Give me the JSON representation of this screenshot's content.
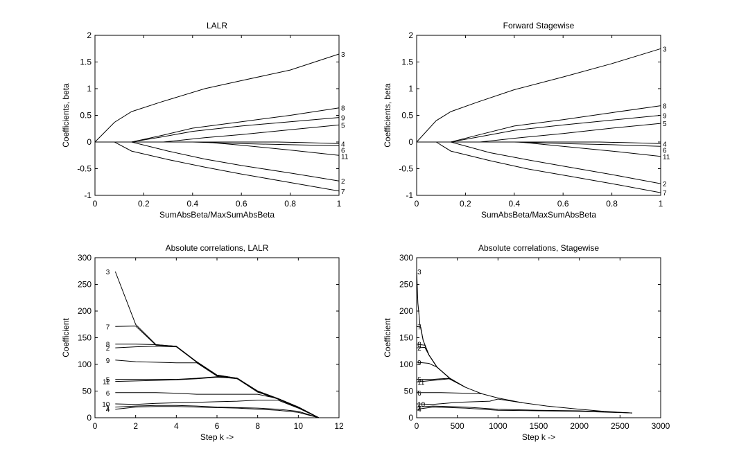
{
  "chart_data": [
    {
      "type": "line",
      "title": "LALR",
      "xlabel": "SumAbsBeta/MaxSumAbsBeta",
      "ylabel": "Coefficients, beta",
      "xlim": [
        0,
        1
      ],
      "ylim": [
        -1,
        2
      ],
      "xticks": [
        0,
        0.2,
        0.4,
        0.6,
        0.8,
        1
      ],
      "yticks": [
        -1,
        -0.5,
        0,
        0.5,
        1,
        1.5,
        2
      ],
      "xtick_labels": [
        "0",
        "0.2",
        "0.4",
        "0.6",
        "0.8",
        "1"
      ],
      "ytick_labels": [
        "-1",
        "-0.5",
        "0",
        "0.5",
        "1",
        "1.5",
        "2"
      ],
      "grid": false,
      "series": [
        {
          "name": "3",
          "x": [
            0,
            0.08,
            0.15,
            0.27,
            0.45,
            0.6,
            0.8,
            1.0
          ],
          "y": [
            0,
            0.37,
            0.57,
            0.75,
            1.0,
            1.15,
            1.35,
            1.65
          ]
        },
        {
          "name": "8",
          "x": [
            0,
            0.15,
            0.28,
            0.4,
            0.6,
            0.8,
            1.0
          ],
          "y": [
            0,
            0,
            0.13,
            0.26,
            0.38,
            0.5,
            0.64
          ]
        },
        {
          "name": "9",
          "x": [
            0,
            0.15,
            0.28,
            0.4,
            0.6,
            0.8,
            1.0
          ],
          "y": [
            0,
            0,
            0.1,
            0.2,
            0.3,
            0.38,
            0.46
          ]
        },
        {
          "name": "5",
          "x": [
            0,
            0.28,
            0.45,
            0.6,
            0.8,
            1.0
          ],
          "y": [
            0,
            0,
            0.08,
            0.14,
            0.23,
            0.32
          ]
        },
        {
          "name": "4",
          "x": [
            0,
            0.75,
            0.85,
            1.0
          ],
          "y": [
            0,
            0,
            -0.01,
            -0.03
          ]
        },
        {
          "name": "6",
          "x": [
            0,
            0.4,
            0.6,
            0.8,
            1.0
          ],
          "y": [
            0,
            0,
            -0.03,
            -0.05,
            -0.07
          ]
        },
        {
          "name": "11",
          "x": [
            0,
            0.45,
            0.6,
            0.8,
            1.0
          ],
          "y": [
            0,
            0,
            -0.06,
            -0.15,
            -0.25
          ]
        },
        {
          "name": "2",
          "x": [
            0,
            0.15,
            0.3,
            0.45,
            0.6,
            0.8,
            1.0
          ],
          "y": [
            0,
            0,
            -0.17,
            -0.32,
            -0.44,
            -0.58,
            -0.73
          ]
        },
        {
          "name": "7",
          "x": [
            0,
            0.08,
            0.15,
            0.3,
            0.45,
            0.6,
            0.8,
            1.0
          ],
          "y": [
            0,
            0,
            -0.17,
            -0.33,
            -0.47,
            -0.6,
            -0.76,
            -0.92
          ]
        }
      ]
    },
    {
      "type": "line",
      "title": "Forward Stagewise",
      "xlabel": "SumAbsBeta/MaxSumAbsBeta",
      "ylabel": "Coefficients, beta",
      "xlim": [
        0,
        1
      ],
      "ylim": [
        -1,
        2
      ],
      "xticks": [
        0,
        0.2,
        0.4,
        0.6,
        0.8,
        1
      ],
      "yticks": [
        -1,
        -0.5,
        0,
        0.5,
        1,
        1.5,
        2
      ],
      "xtick_labels": [
        "0",
        "0.2",
        "0.4",
        "0.6",
        "0.8",
        "1"
      ],
      "ytick_labels": [
        "-1",
        "-0.5",
        "0",
        "0.5",
        "1",
        "1.5",
        "2"
      ],
      "grid": false,
      "series": [
        {
          "name": "3",
          "x": [
            0,
            0.08,
            0.14,
            0.25,
            0.4,
            0.6,
            0.8,
            1.0
          ],
          "y": [
            0,
            0.4,
            0.57,
            0.75,
            0.98,
            1.22,
            1.47,
            1.75
          ]
        },
        {
          "name": "8",
          "x": [
            0,
            0.14,
            0.26,
            0.4,
            0.6,
            0.8,
            1.0
          ],
          "y": [
            0,
            0,
            0.14,
            0.3,
            0.42,
            0.55,
            0.68
          ]
        },
        {
          "name": "9",
          "x": [
            0,
            0.14,
            0.26,
            0.4,
            0.6,
            0.8,
            1.0
          ],
          "y": [
            0,
            0,
            0.1,
            0.22,
            0.32,
            0.41,
            0.5
          ]
        },
        {
          "name": "5",
          "x": [
            0,
            0.26,
            0.4,
            0.6,
            0.8,
            1.0
          ],
          "y": [
            0,
            0,
            0.07,
            0.16,
            0.26,
            0.35
          ]
        },
        {
          "name": "4",
          "x": [
            0,
            0.75,
            0.85,
            1.0
          ],
          "y": [
            0,
            0,
            -0.01,
            -0.03
          ]
        },
        {
          "name": "6",
          "x": [
            0,
            0.4,
            0.6,
            0.8,
            1.0
          ],
          "y": [
            0,
            0,
            -0.03,
            -0.05,
            -0.08
          ]
        },
        {
          "name": "11",
          "x": [
            0,
            0.42,
            0.6,
            0.8,
            1.0
          ],
          "y": [
            0,
            0,
            -0.08,
            -0.17,
            -0.27
          ]
        },
        {
          "name": "2",
          "x": [
            0,
            0.14,
            0.3,
            0.45,
            0.6,
            0.8,
            1.0
          ],
          "y": [
            0,
            0,
            -0.2,
            -0.33,
            -0.45,
            -0.61,
            -0.78
          ]
        },
        {
          "name": "7",
          "x": [
            0,
            0.08,
            0.14,
            0.3,
            0.45,
            0.6,
            0.8,
            1.0
          ],
          "y": [
            0,
            0,
            -0.17,
            -0.35,
            -0.5,
            -0.62,
            -0.78,
            -0.95
          ]
        }
      ]
    },
    {
      "type": "line",
      "title": "Absolute correlations, LALR",
      "xlabel": "Step k ->",
      "ylabel": "Coefficient",
      "xlim": [
        0,
        12
      ],
      "ylim": [
        0,
        300
      ],
      "xticks": [
        0,
        2,
        4,
        6,
        8,
        10,
        12
      ],
      "yticks": [
        0,
        50,
        100,
        150,
        200,
        250,
        300
      ],
      "xtick_labels": [
        "0",
        "2",
        "4",
        "6",
        "8",
        "10",
        "12"
      ],
      "ytick_labels": [
        "0",
        "50",
        "100",
        "150",
        "200",
        "250",
        "300"
      ],
      "grid": false,
      "series": [
        {
          "name": "3",
          "x": [
            1,
            2,
            3,
            4,
            5,
            6,
            7,
            8,
            9,
            10,
            11
          ],
          "y": [
            274,
            175,
            137,
            134,
            105,
            80,
            74,
            50,
            36,
            20,
            0
          ]
        },
        {
          "name": "7",
          "x": [
            1,
            2,
            3,
            4,
            5,
            6,
            7,
            8,
            9,
            10,
            11
          ],
          "y": [
            171,
            172,
            136,
            134,
            104,
            79,
            74,
            49,
            35,
            19,
            0
          ]
        },
        {
          "name": "8",
          "x": [
            1,
            2,
            3,
            4,
            5,
            6,
            7,
            8,
            9,
            10,
            11
          ],
          "y": [
            138,
            138,
            137,
            134,
            105,
            80,
            74,
            50,
            36,
            20,
            0
          ]
        },
        {
          "name": "2",
          "x": [
            1,
            2,
            3,
            4,
            5,
            6,
            7,
            8,
            9,
            10,
            11
          ],
          "y": [
            131,
            133,
            134,
            133,
            104,
            79,
            73,
            48,
            35,
            19,
            0
          ]
        },
        {
          "name": "9",
          "x": [
            1,
            2,
            3,
            4,
            5,
            6,
            7,
            8,
            9,
            10,
            11
          ],
          "y": [
            108,
            105,
            104,
            103,
            103,
            78,
            74,
            49,
            36,
            20,
            0
          ]
        },
        {
          "name": "5",
          "x": [
            1,
            2,
            3,
            4,
            5,
            6,
            7,
            8,
            9,
            10,
            11
          ],
          "y": [
            72,
            72,
            72,
            72,
            74,
            77,
            73,
            50,
            36,
            20,
            0
          ]
        },
        {
          "name": "11",
          "x": [
            1,
            2,
            3,
            4,
            5,
            6,
            7,
            8,
            9,
            10,
            11
          ],
          "y": [
            68,
            69,
            70,
            71,
            73,
            76,
            74,
            50,
            35,
            19,
            0
          ]
        },
        {
          "name": "6",
          "x": [
            1,
            2,
            3,
            4,
            5,
            6,
            7,
            8,
            9,
            10,
            11
          ],
          "y": [
            47,
            47,
            47,
            46,
            44,
            44,
            44,
            44,
            36,
            20,
            0
          ]
        },
        {
          "name": "10",
          "x": [
            1,
            2,
            3,
            4,
            5,
            6,
            7,
            8,
            9,
            10,
            11
          ],
          "y": [
            26,
            25,
            27,
            28,
            29,
            30,
            31,
            33,
            33,
            18,
            0
          ]
        },
        {
          "name": "1",
          "x": [
            1,
            2,
            3,
            4,
            5,
            6,
            7,
            8,
            9,
            10,
            11
          ],
          "y": [
            20,
            22,
            23,
            23,
            22,
            20,
            19,
            18,
            16,
            12,
            0
          ]
        },
        {
          "name": "4",
          "x": [
            1,
            2,
            3,
            4,
            5,
            6,
            7,
            8,
            9,
            10,
            11
          ],
          "y": [
            16,
            20,
            21,
            21,
            20,
            19,
            18,
            16,
            14,
            10,
            0
          ]
        }
      ]
    },
    {
      "type": "line",
      "title": "Absolute correlations, Stagewise",
      "xlabel": "Step k ->",
      "ylabel": "Coefficient",
      "xlim": [
        0,
        3000
      ],
      "ylim": [
        0,
        300
      ],
      "xticks": [
        0,
        500,
        1000,
        1500,
        2000,
        2500,
        3000
      ],
      "yticks": [
        0,
        50,
        100,
        150,
        200,
        250,
        300
      ],
      "xtick_labels": [
        "0",
        "500",
        "1000",
        "1500",
        "2000",
        "2500",
        "3000"
      ],
      "ytick_labels": [
        "0",
        "50",
        "100",
        "150",
        "200",
        "250",
        "300"
      ],
      "grid": false,
      "series": [
        {
          "name": "3",
          "x": [
            1,
            15,
            40,
            80,
            150,
            250,
            400,
            600,
            800,
            1000,
            1300,
            1600,
            2000,
            2300,
            2650
          ],
          "y": [
            274,
            215,
            175,
            145,
            118,
            95,
            75,
            57,
            45,
            37,
            28,
            22,
            16,
            12,
            9
          ]
        },
        {
          "name": "7",
          "x": [
            1,
            50,
            80,
            150,
            250,
            400
          ],
          "y": [
            171,
            170,
            145,
            118,
            95,
            75
          ]
        },
        {
          "name": "8",
          "x": [
            1,
            100,
            150,
            250,
            400
          ],
          "y": [
            138,
            136,
            118,
            95,
            75
          ]
        },
        {
          "name": "2",
          "x": [
            1,
            100,
            150,
            250,
            400
          ],
          "y": [
            131,
            132,
            118,
            95,
            75
          ]
        },
        {
          "name": "9",
          "x": [
            1,
            150,
            250,
            400
          ],
          "y": [
            104,
            102,
            95,
            75
          ]
        },
        {
          "name": "5",
          "x": [
            1,
            200,
            400,
            600
          ],
          "y": [
            72,
            72,
            74,
            57
          ]
        },
        {
          "name": "11",
          "x": [
            1,
            200,
            400,
            600
          ],
          "y": [
            67,
            70,
            73,
            57
          ]
        },
        {
          "name": "6",
          "x": [
            1,
            300,
            600,
            800
          ],
          "y": [
            47,
            47,
            46,
            45
          ]
        },
        {
          "name": "10",
          "x": [
            1,
            200,
            500,
            900,
            1000,
            1300
          ],
          "y": [
            26,
            25,
            29,
            31,
            35,
            28
          ]
        },
        {
          "name": "1",
          "x": [
            1,
            200,
            600,
            1000,
            1500,
            2000,
            2650
          ],
          "y": [
            20,
            22,
            20,
            16,
            14,
            13,
            9
          ]
        },
        {
          "name": "4",
          "x": [
            1,
            200,
            600,
            1000,
            1500,
            2000,
            2650
          ],
          "y": [
            16,
            20,
            18,
            14,
            13,
            12,
            9
          ]
        }
      ]
    }
  ]
}
